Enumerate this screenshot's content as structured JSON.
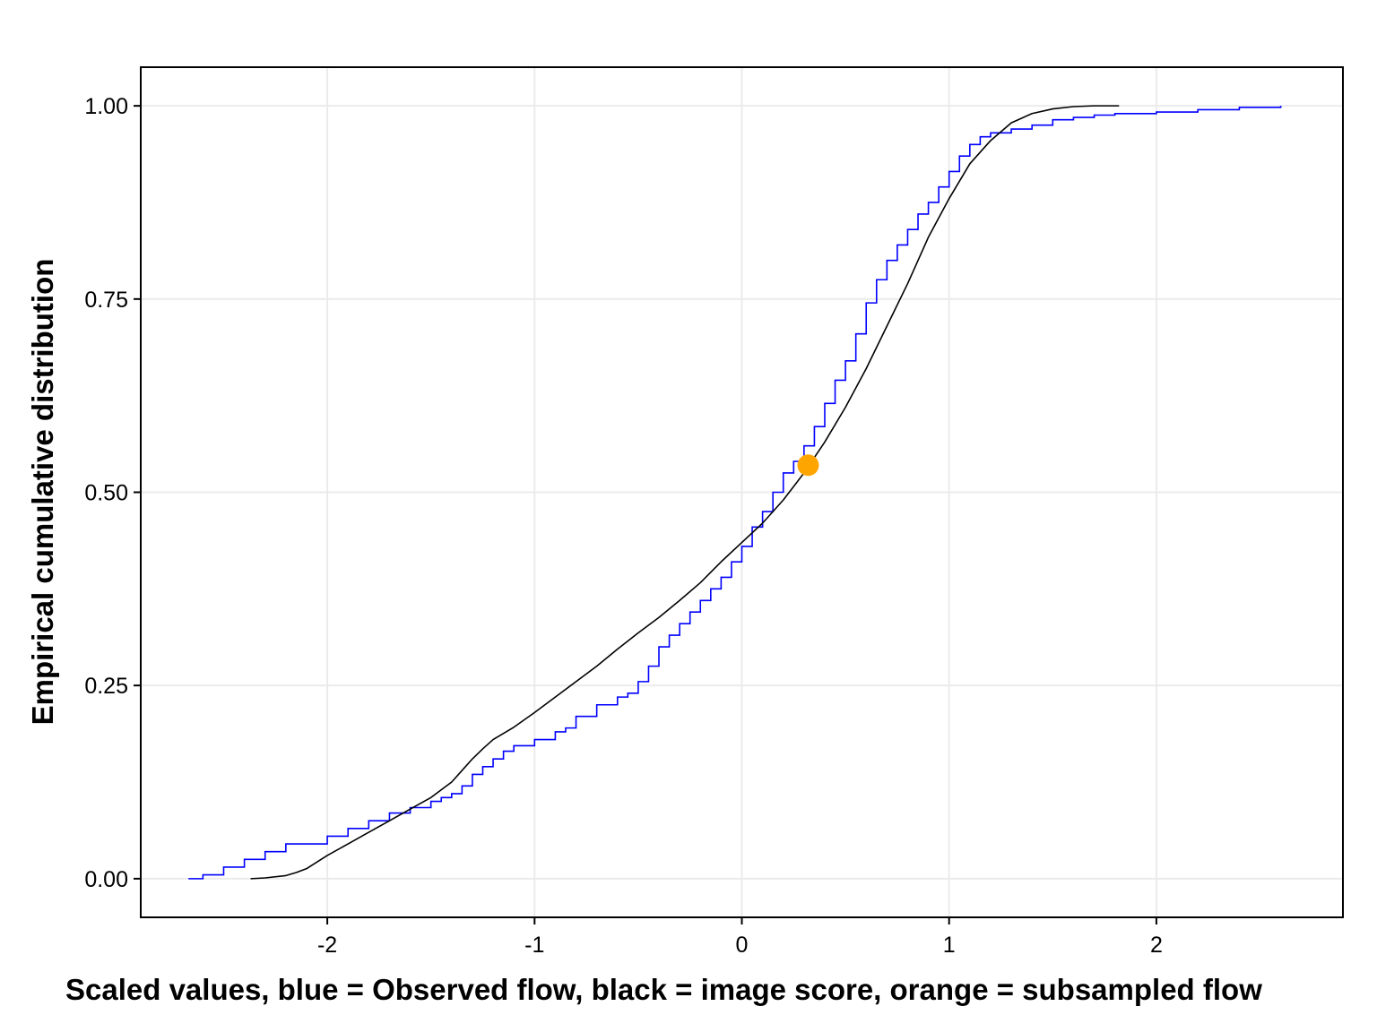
{
  "chart_data": {
    "type": "line",
    "title": "",
    "xlabel": "Scaled values, blue = Observed flow, black = image score, orange = subsampled flow",
    "ylabel": "Empirical cumulative distribution",
    "xlim": [
      -2.9,
      2.9
    ],
    "ylim": [
      -0.05,
      1.05
    ],
    "x_ticks": [
      -2,
      -1,
      0,
      1,
      2
    ],
    "x_tick_labels": [
      "-2",
      "-1",
      "0",
      "1",
      "2"
    ],
    "y_ticks": [
      0,
      0.25,
      0.5,
      0.75,
      1
    ],
    "y_tick_labels": [
      "0.00",
      "0.25",
      "0.50",
      "0.75",
      "1.00"
    ],
    "grid": true,
    "legend": "none",
    "colors": {
      "observed": "#0000ff",
      "image": "#000000",
      "subsampled": "#ffa500"
    },
    "series": [
      {
        "x": [
          -2.67,
          -2.6,
          -2.5,
          -2.4,
          -2.3,
          -2.2,
          -2.0,
          -1.9,
          -1.8,
          -1.7,
          -1.6,
          -1.5,
          -1.45,
          -1.4,
          -1.35,
          -1.3,
          -1.25,
          -1.2,
          -1.15,
          -1.1,
          -1.0,
          -0.9,
          -0.85,
          -0.8,
          -0.7,
          -0.6,
          -0.55,
          -0.5,
          -0.45,
          -0.4,
          -0.35,
          -0.3,
          -0.25,
          -0.2,
          -0.15,
          -0.1,
          -0.05,
          0.0,
          0.05,
          0.1,
          0.15,
          0.2,
          0.25,
          0.3,
          0.35,
          0.4,
          0.45,
          0.5,
          0.55,
          0.6,
          0.65,
          0.7,
          0.75,
          0.8,
          0.85,
          0.9,
          0.95,
          1.0,
          1.05,
          1.1,
          1.15,
          1.2,
          1.3,
          1.4,
          1.5,
          1.6,
          1.7,
          1.8,
          2.0,
          2.2,
          2.4,
          2.6
        ],
        "y": [
          0.0,
          0.005,
          0.015,
          0.025,
          0.035,
          0.045,
          0.055,
          0.065,
          0.075,
          0.085,
          0.092,
          0.1,
          0.105,
          0.11,
          0.12,
          0.135,
          0.145,
          0.155,
          0.165,
          0.172,
          0.18,
          0.19,
          0.195,
          0.21,
          0.225,
          0.235,
          0.24,
          0.255,
          0.275,
          0.3,
          0.315,
          0.33,
          0.345,
          0.36,
          0.375,
          0.39,
          0.41,
          0.43,
          0.455,
          0.475,
          0.5,
          0.525,
          0.54,
          0.56,
          0.585,
          0.615,
          0.645,
          0.67,
          0.705,
          0.745,
          0.775,
          0.8,
          0.82,
          0.84,
          0.86,
          0.875,
          0.895,
          0.915,
          0.935,
          0.95,
          0.96,
          0.965,
          0.97,
          0.975,
          0.982,
          0.985,
          0.988,
          0.99,
          0.992,
          0.995,
          0.998,
          1.0
        ]
      },
      {
        "x": [
          -2.37,
          -2.3,
          -2.2,
          -2.15,
          -2.1,
          -2.0,
          -1.9,
          -1.8,
          -1.7,
          -1.6,
          -1.5,
          -1.45,
          -1.4,
          -1.35,
          -1.3,
          -1.25,
          -1.2,
          -1.1,
          -1.0,
          -0.9,
          -0.8,
          -0.7,
          -0.6,
          -0.5,
          -0.4,
          -0.3,
          -0.2,
          -0.1,
          0.0,
          0.1,
          0.2,
          0.3,
          0.4,
          0.5,
          0.6,
          0.7,
          0.8,
          0.9,
          1.0,
          1.1,
          1.2,
          1.3,
          1.4,
          1.5,
          1.6,
          1.7,
          1.8,
          1.82
        ],
        "y": [
          0.0,
          0.001,
          0.004,
          0.008,
          0.013,
          0.03,
          0.045,
          0.06,
          0.075,
          0.09,
          0.105,
          0.115,
          0.125,
          0.14,
          0.155,
          0.168,
          0.18,
          0.196,
          0.215,
          0.235,
          0.255,
          0.275,
          0.297,
          0.318,
          0.338,
          0.36,
          0.383,
          0.41,
          0.435,
          0.46,
          0.49,
          0.525,
          0.565,
          0.61,
          0.66,
          0.715,
          0.77,
          0.83,
          0.88,
          0.925,
          0.955,
          0.978,
          0.99,
          0.996,
          0.999,
          1.0,
          1.0,
          1.0
        ]
      },
      {
        "x": [
          0.32
        ],
        "y": [
          0.535
        ]
      }
    ]
  }
}
